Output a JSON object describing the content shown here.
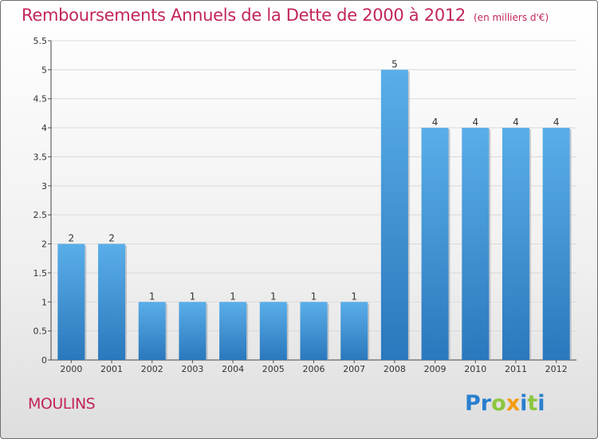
{
  "chart_data": {
    "type": "bar",
    "title": "Remboursements Annuels de la Dette de 2000 à 2012",
    "subtitle": "(en milliers d'€)",
    "categories": [
      "2000",
      "2001",
      "2002",
      "2003",
      "2004",
      "2005",
      "2006",
      "2007",
      "2008",
      "2009",
      "2010",
      "2011",
      "2012"
    ],
    "values": [
      2,
      2,
      1,
      1,
      1,
      1,
      1,
      1,
      5,
      4,
      4,
      4,
      4
    ],
    "data_labels": [
      "2",
      "2",
      "1",
      "1",
      "1",
      "1",
      "1",
      "1",
      "5",
      "4",
      "4",
      "4",
      "4"
    ],
    "ylim": [
      0,
      5.5
    ],
    "y_ticks": [
      "0",
      "0.5",
      "1",
      "1.5",
      "2",
      "2.5",
      "3",
      "3.5",
      "4",
      "4.5",
      "5",
      "5.5"
    ],
    "xlabel": "",
    "ylabel": "",
    "grid": true,
    "bar_color": "#3e8fd6"
  },
  "footer": {
    "place": "MOULINS",
    "logo_text": "Proxiti"
  },
  "colors": {
    "title": "#c2255c",
    "logo_letters": [
      "#2a7fcf",
      "#2a7fcf",
      "#8cc63f",
      "#f39c12",
      "#2a7fcf",
      "#8cc63f",
      "#2a7fcf"
    ]
  }
}
